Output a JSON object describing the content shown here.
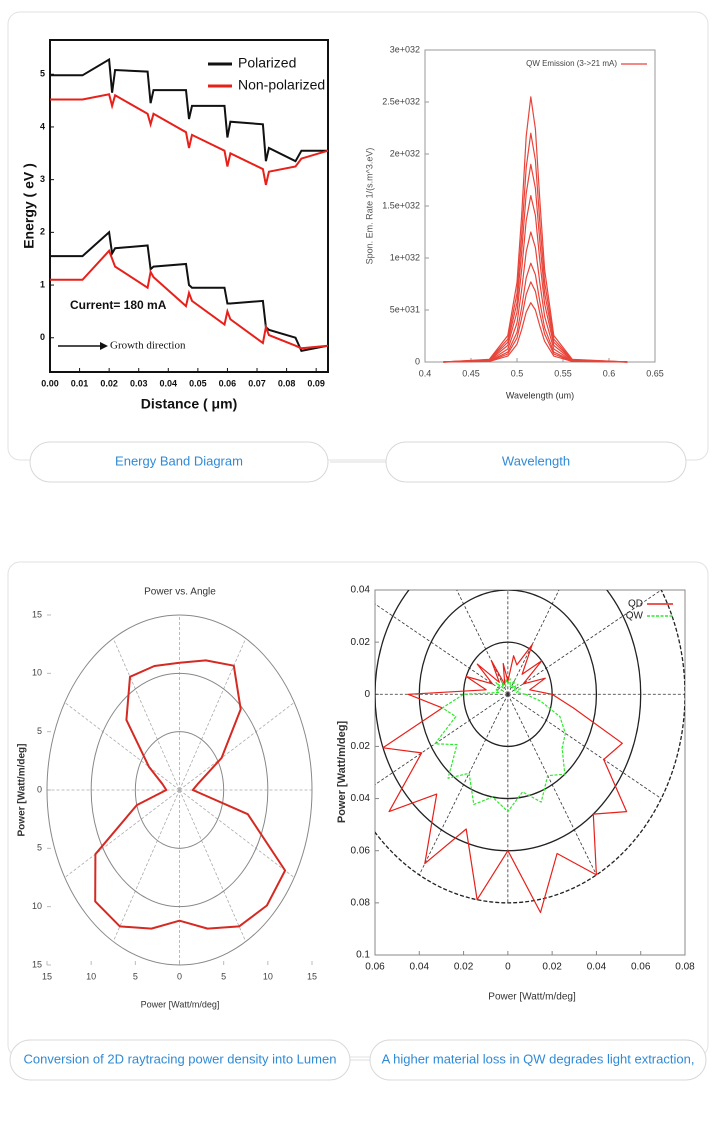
{
  "chart_data": [
    {
      "type": "line",
      "x_label": "Distance ( μm)",
      "y_label": "Energy  ( eV )",
      "annotations": [
        "Current= 180 mA",
        "Growth direction"
      ],
      "xlim": [
        0,
        0.094
      ],
      "ylim": [
        -0.65,
        5.65
      ],
      "xticks": [
        {
          "value": 0,
          "label": "0.00"
        },
        {
          "value": 0.01,
          "label": "0.01"
        },
        {
          "value": 0.02,
          "label": "0.02"
        },
        {
          "value": 0.03,
          "label": "0.03"
        },
        {
          "value": 0.04,
          "label": "0.04"
        },
        {
          "value": 0.05,
          "label": "0.05"
        },
        {
          "value": 0.06,
          "label": "0.06"
        },
        {
          "value": 0.07,
          "label": "0.07"
        },
        {
          "value": 0.08,
          "label": "0.08"
        },
        {
          "value": 0.09,
          "label": "0.09"
        }
      ],
      "yticks": [
        0,
        1,
        2,
        3,
        4,
        5
      ],
      "series": [
        {
          "name": "Polarized",
          "color": "#111111",
          "x": [
            0,
            0.011,
            0.02,
            0.021,
            0.022,
            0.033,
            0.034,
            0.035,
            0.046,
            0.047,
            0.048,
            0.059,
            0.06,
            0.061,
            0.072,
            0.073,
            0.074,
            0.083,
            0.085,
            0.094,
            null,
            0,
            0.011,
            0.02,
            0.021,
            0.022,
            0.033,
            0.034,
            0.035,
            0.046,
            0.047,
            0.048,
            0.059,
            0.06,
            0.061,
            0.072,
            0.073,
            0.074,
            0.083,
            0.085,
            0.094
          ],
          "values": [
            4.98,
            4.98,
            5.28,
            4.65,
            5.08,
            5.05,
            4.45,
            4.7,
            4.7,
            4.15,
            4.4,
            4.4,
            3.8,
            4.1,
            4.05,
            3.35,
            3.6,
            3.35,
            3.55,
            3.55,
            null,
            1.55,
            1.55,
            2.0,
            1.6,
            1.7,
            1.75,
            1.3,
            1.35,
            1.4,
            1.0,
            0.95,
            0.95,
            0.65,
            0.65,
            0.7,
            0.2,
            0.15,
            0.0,
            -0.25,
            -0.15
          ]
        },
        {
          "name": "Non-polarized",
          "color": "#e8201a",
          "x": [
            0,
            0.011,
            0.02,
            0.021,
            0.022,
            0.033,
            0.034,
            0.035,
            0.046,
            0.047,
            0.048,
            0.059,
            0.06,
            0.061,
            0.072,
            0.073,
            0.074,
            0.083,
            0.085,
            0.094,
            null,
            0,
            0.011,
            0.02,
            0.021,
            0.022,
            0.033,
            0.034,
            0.035,
            0.046,
            0.047,
            0.048,
            0.059,
            0.06,
            0.061,
            0.072,
            0.073,
            0.074,
            0.083,
            0.085,
            0.094
          ],
          "values": [
            4.52,
            4.52,
            4.62,
            4.4,
            4.6,
            4.25,
            4.05,
            4.25,
            3.9,
            3.6,
            3.85,
            3.55,
            3.25,
            3.5,
            3.2,
            2.9,
            3.15,
            3.25,
            3.4,
            3.55,
            null,
            1.1,
            1.1,
            1.65,
            1.5,
            1.35,
            0.95,
            1.25,
            1.15,
            0.6,
            0.85,
            0.7,
            0.25,
            0.5,
            0.35,
            -0.1,
            0.2,
            0.05,
            -0.15,
            -0.2,
            -0.15
          ]
        }
      ]
    },
    {
      "type": "line",
      "x_label": "Wavelength (um)",
      "y_label": "Spon. Em. Rate 1/(s.m^3.eV)",
      "xlim": [
        0.4,
        0.65
      ],
      "ylim": [
        0,
        3e+32
      ],
      "xticks": [
        0.4,
        0.45,
        0.5,
        0.55,
        0.6,
        0.65
      ],
      "yticks": [
        0,
        {
          "value": 5e+31,
          "label": "5e+031"
        },
        {
          "value": 1e+32,
          "label": "1e+032"
        },
        {
          "value": 1.5e+32,
          "label": "1.5e+032"
        },
        {
          "value": 2e+32,
          "label": "2e+032"
        },
        {
          "value": 2.5e+32,
          "label": "2.5e+032"
        },
        {
          "value": 3e+32,
          "label": "3e+032"
        }
      ],
      "x": [
        0.42,
        0.47,
        0.49,
        0.5,
        0.505,
        0.51,
        0.515,
        0.52,
        0.525,
        0.53,
        0.54,
        0.56,
        0.62
      ],
      "series": [
        {
          "name": "QW Emission (3->21 mA)",
          "color": "#e8443a",
          "curves": [
            [
              0,
              5.7e+29,
              5.7e+30,
              1.71e+31,
              3.1e+31,
              4.8e+31,
              5.7e+31,
              5e+31,
              3.4e+31,
              2e+31,
              5.7e+30,
              5.7e+29,
              0
            ],
            [
              0,
              7.7e+29,
              7.7e+30,
              2.3e+31,
              4.2e+31,
              6.5e+31,
              7.7e+31,
              6.8e+31,
              4.6e+31,
              2.7e+31,
              7.7e+30,
              7.7e+29,
              0
            ],
            [
              0,
              9.5e+29,
              9.5e+30,
              2.85e+31,
              5.2e+31,
              8.1e+31,
              9.5e+31,
              8.4e+31,
              5.7e+31,
              3.3e+31,
              9.5e+30,
              9.5e+29,
              0
            ],
            [
              0,
              1.25e+30,
              1.25e+31,
              3.75e+31,
              6.9e+31,
              1.06e+32,
              1.25e+32,
              1.1e+32,
              7.5e+31,
              4.4e+31,
              1.25e+31,
              1.25e+30,
              0
            ],
            [
              0,
              1.6e+30,
              1.6e+31,
              4.8e+31,
              8.8e+31,
              1.36e+32,
              1.6e+32,
              1.41e+32,
              9.6e+31,
              5.6e+31,
              1.6e+31,
              1.6e+30,
              0
            ],
            [
              0,
              1.9e+30,
              1.9e+31,
              5.7e+31,
              1.05e+32,
              1.62e+32,
              1.9e+32,
              1.67e+32,
              1.14e+32,
              6.65e+31,
              1.9e+31,
              1.9e+30,
              0
            ],
            [
              0,
              2.2e+30,
              2.2e+31,
              6.6e+31,
              1.21e+32,
              1.87e+32,
              2.2e+32,
              1.94e+32,
              1.32e+32,
              7.7e+31,
              2.2e+31,
              2.2e+30,
              0
            ],
            [
              0,
              2.55e+30,
              2.55e+31,
              7.65e+31,
              1.4e+32,
              2.17e+32,
              2.55e+32,
              2.24e+32,
              1.53e+32,
              8.9e+31,
              2.55e+31,
              2.55e+30,
              0
            ]
          ]
        }
      ]
    },
    {
      "type": "polar",
      "title": "Power vs. Angle",
      "x_label": "Power [Watt/m/deg]",
      "y_label": "Power [Watt/m/deg]",
      "xlim": [
        -15,
        15
      ],
      "ylim": [
        -15,
        15
      ],
      "xticks": [
        {
          "value": -15,
          "label": "15"
        },
        {
          "value": -10,
          "label": "10"
        },
        {
          "value": -5,
          "label": "5"
        },
        0,
        5,
        10,
        15
      ],
      "yticks": [
        {
          "value": -15,
          "label": "15"
        },
        {
          "value": -10,
          "label": "10"
        },
        {
          "value": -5,
          "label": "5"
        },
        0,
        5,
        10,
        15
      ],
      "rgrid": [
        5,
        10,
        15
      ],
      "thetagrid": [
        0,
        30,
        60,
        90,
        120,
        150,
        180,
        210,
        240,
        270,
        300,
        330
      ],
      "series": [
        {
          "color": "#d42a22",
          "theta": [
            0,
            15,
            30,
            45,
            60,
            75,
            90,
            105,
            120,
            135,
            150,
            165,
            180,
            195,
            210,
            225,
            240,
            255,
            270,
            285,
            300,
            315,
            330,
            345
          ],
          "values": [
            1.5,
            2.2,
            5.5,
            9.8,
            12.3,
            11.5,
            10.9,
            11,
            11.2,
            8.5,
            4,
            2,
            1.5,
            5,
            11,
            13.5,
            13.5,
            12.3,
            11.2,
            12.3,
            13.5,
            14,
            13.8,
            8
          ]
        }
      ]
    },
    {
      "type": "polar",
      "x_label": "Power [Watt/m/deg]",
      "y_label": "Power [Watt/m/deg]",
      "xlim": [
        -0.06,
        0.08
      ],
      "ylim": [
        -0.1,
        0.04
      ],
      "xticks": [
        {
          "value": -0.06,
          "label": "0.06"
        },
        {
          "value": -0.04,
          "label": "0.04"
        },
        {
          "value": -0.02,
          "label": "0.02"
        },
        0,
        0.02,
        0.04,
        0.06,
        0.08
      ],
      "yticks": [
        0.04,
        0.02,
        0,
        {
          "value": -0.02,
          "label": "0.02"
        },
        {
          "value": -0.04,
          "label": "0.04"
        },
        {
          "value": -0.06,
          "label": "0.06"
        },
        {
          "value": -0.08,
          "label": "0.08"
        },
        {
          "value": -0.1,
          "label": "0.1"
        }
      ],
      "rgrid": [
        0.02,
        0.04,
        0.06,
        0.08
      ],
      "thetagrid": [
        0,
        30,
        60,
        90,
        120,
        150,
        180,
        210,
        240,
        270,
        300,
        330
      ],
      "series": [
        {
          "name": "QD",
          "color": "#e8201a",
          "theta": [
            0,
            10,
            20,
            30,
            40,
            50,
            60,
            70,
            80,
            90,
            100,
            110,
            120,
            130,
            140,
            150,
            160,
            170,
            180,
            190,
            200,
            210,
            220,
            230,
            240,
            250,
            260,
            270,
            280,
            290,
            300,
            310,
            320,
            330,
            340,
            350
          ],
          "values": [
            0.02,
            0.01,
            0.018,
            0.008,
            0.02,
            0.01,
            0.022,
            0.012,
            0.015,
            0.005,
            0.012,
            0.004,
            0.015,
            0.006,
            0.018,
            0.008,
            0.02,
            0.01,
            0.045,
            0.03,
            0.06,
            0.045,
            0.07,
            0.05,
            0.075,
            0.055,
            0.08,
            0.06,
            0.085,
            0.065,
            0.08,
            0.06,
            0.07,
            0.05,
            0.055,
            0.03
          ]
        },
        {
          "name": "QW",
          "color": "#2ee82e",
          "dashed": true,
          "theta": [
            0,
            10,
            20,
            30,
            40,
            50,
            60,
            70,
            80,
            90,
            100,
            110,
            120,
            130,
            140,
            150,
            160,
            170,
            180,
            190,
            200,
            210,
            220,
            230,
            240,
            250,
            260,
            270,
            280,
            290,
            300,
            310,
            320,
            330,
            340,
            350
          ],
          "values": [
            0.008,
            0.004,
            0.006,
            0.003,
            0.006,
            0.003,
            0.007,
            0.003,
            0.006,
            0.004,
            0.006,
            0.003,
            0.006,
            0.003,
            0.007,
            0.003,
            0.006,
            0.004,
            0.02,
            0.03,
            0.025,
            0.038,
            0.03,
            0.042,
            0.035,
            0.045,
            0.04,
            0.045,
            0.038,
            0.044,
            0.036,
            0.04,
            0.032,
            0.03,
            0.025,
            0.015
          ]
        }
      ]
    }
  ],
  "captions": [
    "Energy Band Diagram",
    "Wavelength",
    "Conversion of 2D raytracing power density into Lumen",
    "A higher material loss in QW degrades light extraction,"
  ]
}
